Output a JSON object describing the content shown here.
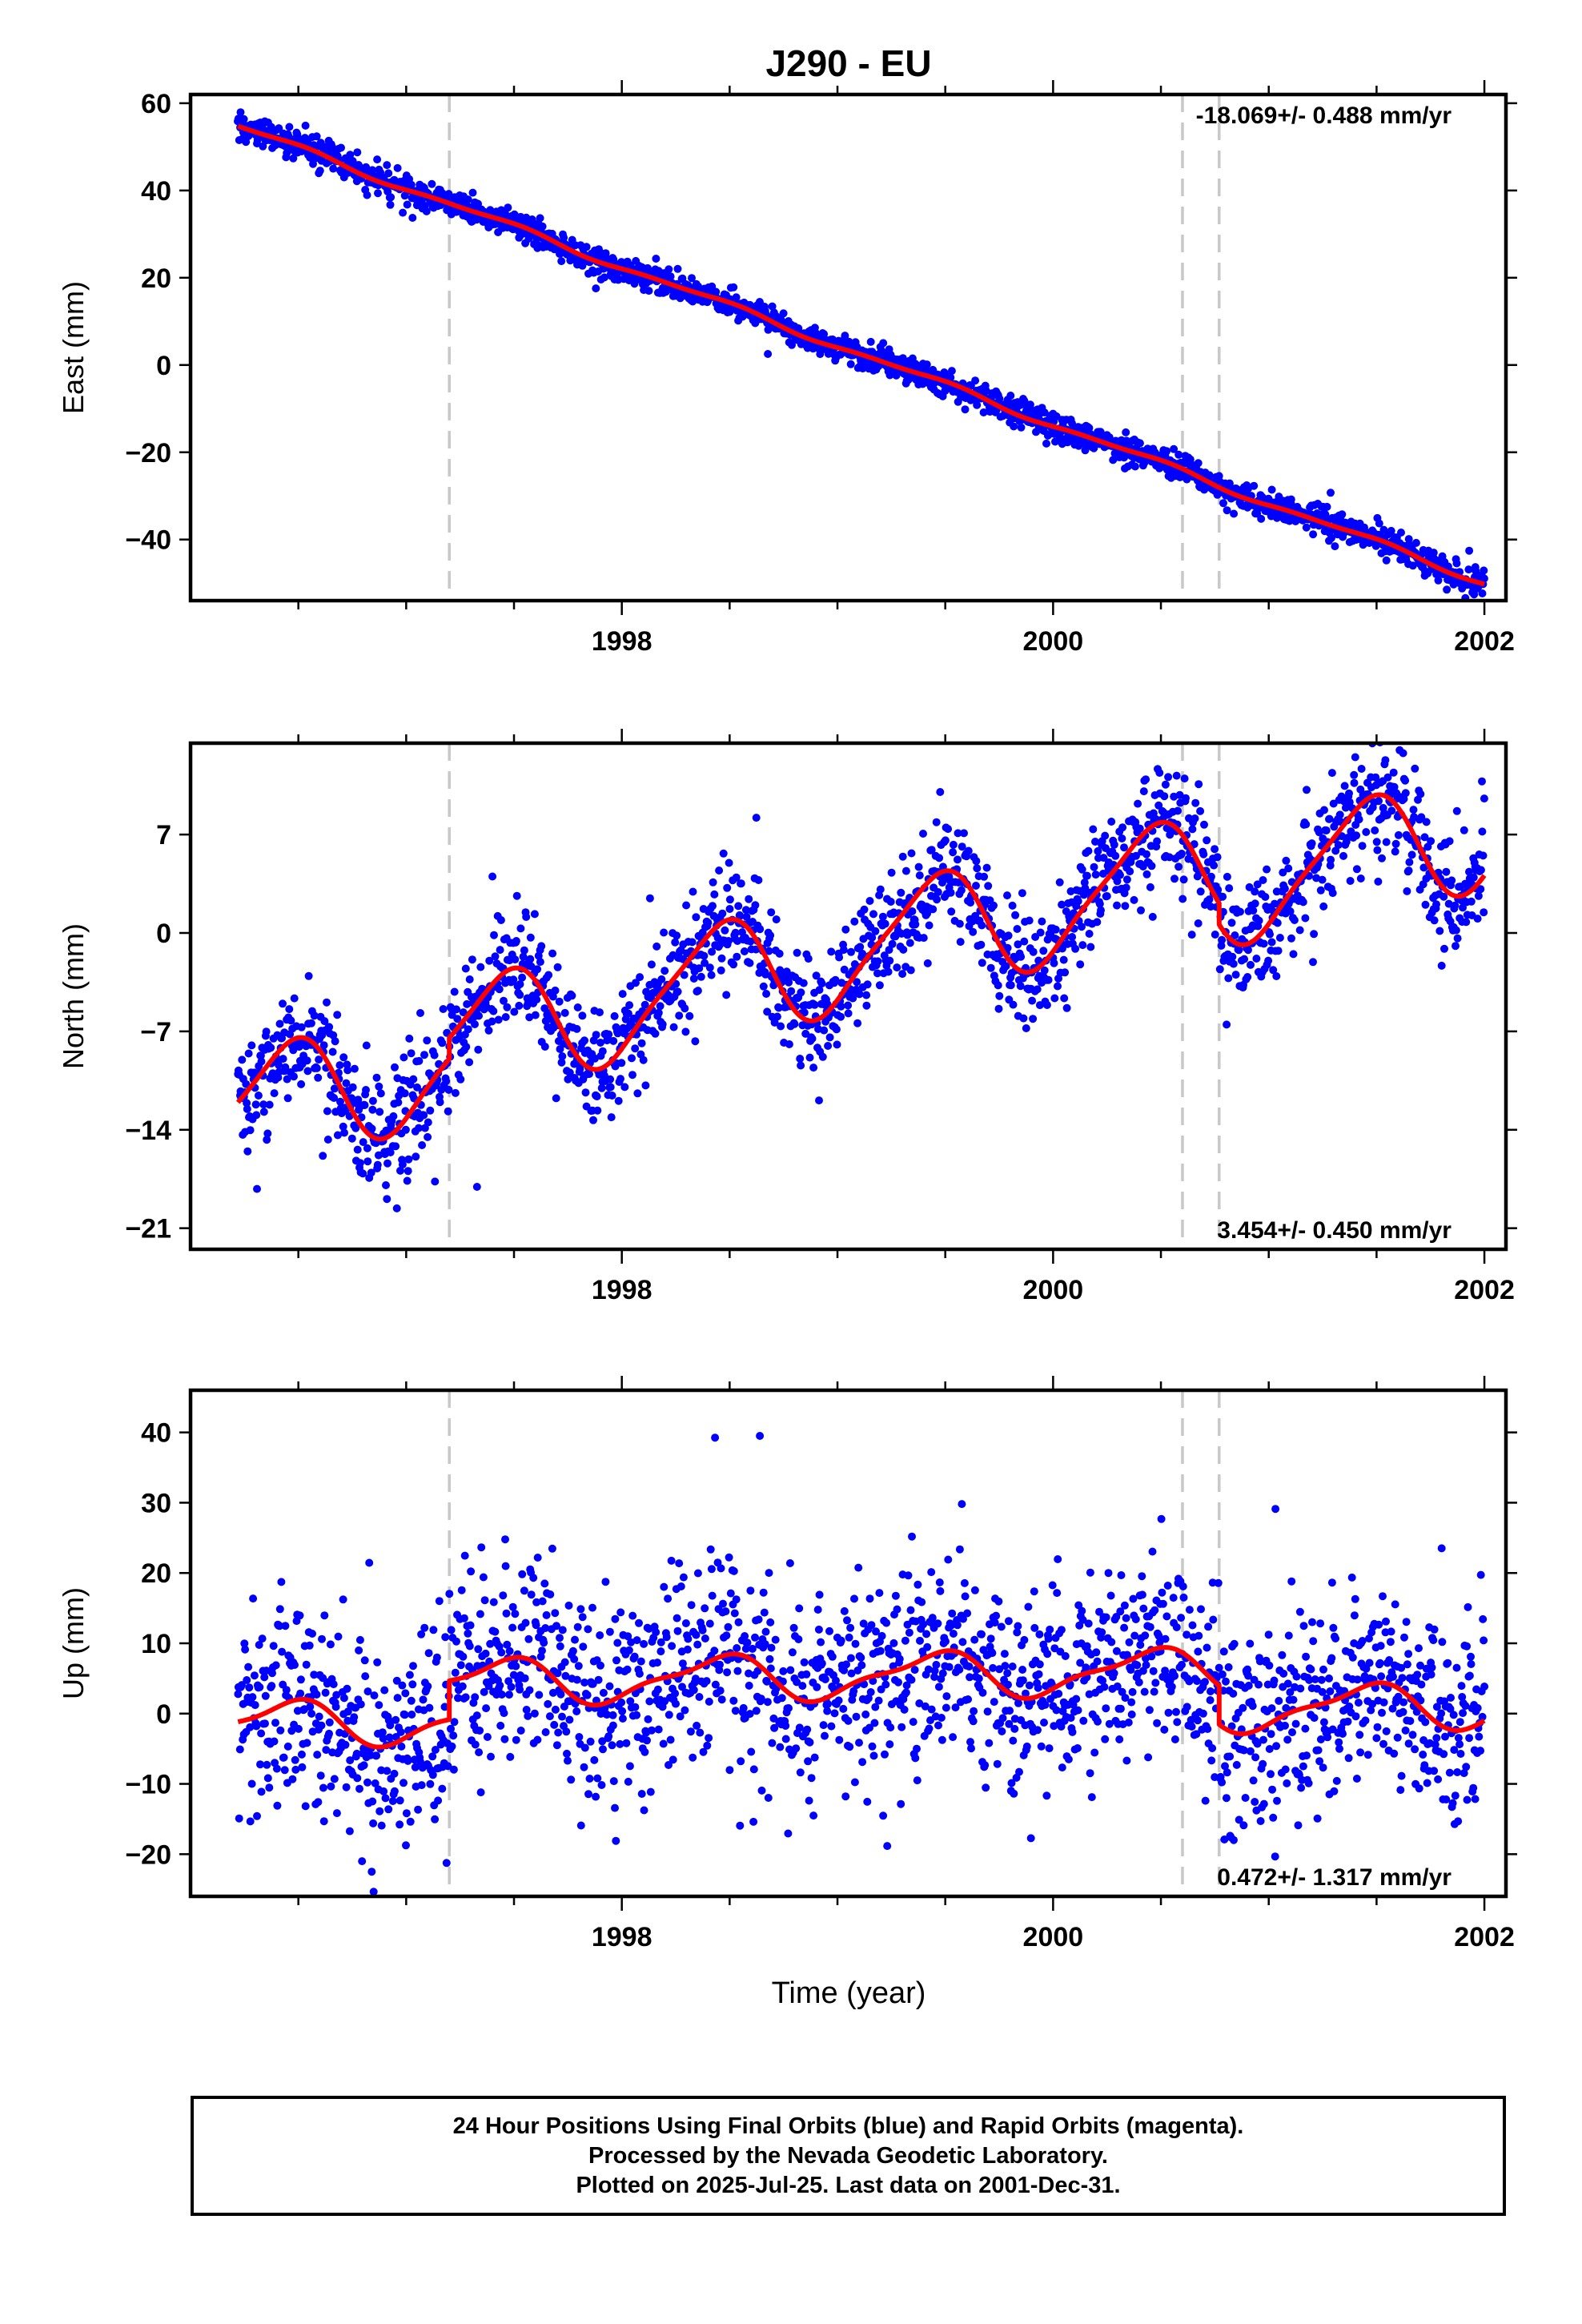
{
  "figure": {
    "title": "J290 - EU",
    "xlabel": "Time (year)"
  },
  "chart_data": [
    {
      "type": "scatter",
      "component": "East",
      "ylabel": "East (mm)",
      "rate_label": "-18.069+/- 0.488 mm/yr",
      "rate_position": "top-right",
      "xlim": [
        1996.0,
        2002.1
      ],
      "ylim": [
        -54,
        62
      ],
      "yticks": [
        -40,
        -20,
        0,
        20,
        40,
        60
      ],
      "xticks": [
        1998,
        2000,
        2002
      ],
      "data_start": 1996.22,
      "data_end": 2002.0,
      "trend_start": 54.7,
      "rate": -18.069,
      "noise": 1.6,
      "seasonal": {
        "annual_amp": 0.7,
        "semiannual_amp": 0.3
      },
      "offsets": [
        {
          "t": 1997.2,
          "d": 0
        },
        {
          "t": 2000.6,
          "d": 0
        },
        {
          "t": 2000.77,
          "d": 0
        }
      ],
      "point_color": "#0000ff",
      "model_color": "#ff0000"
    },
    {
      "type": "scatter",
      "component": "North",
      "ylabel": "North (mm)",
      "rate_label": "3.454+/- 0.450 mm/yr",
      "rate_position": "bottom-right",
      "xlim": [
        1996.0,
        2002.1
      ],
      "ylim": [
        -22.5,
        13.5
      ],
      "yticks": [
        -21,
        -14,
        -7,
        0,
        7
      ],
      "xticks": [
        1998,
        2000,
        2002
      ],
      "data_start": 1996.22,
      "data_end": 2002.0,
      "trend_start": -12.6,
      "rate": 3.454,
      "noise": 2.0,
      "seasonal": {
        "annual_amp": 4.0,
        "semiannual_amp": 0.8
      },
      "offsets": [
        {
          "t": 1997.2,
          "d": 1.5
        },
        {
          "t": 2000.6,
          "d": 0
        },
        {
          "t": 2000.77,
          "d": -1.5
        }
      ],
      "point_color": "#0000ff",
      "model_color": "#ff0000"
    },
    {
      "type": "scatter",
      "component": "Up",
      "ylabel": "Up (mm)",
      "rate_label": "0.472+/- 1.317 mm/yr",
      "rate_position": "bottom-right",
      "xlim": [
        1996.0,
        2002.1
      ],
      "ylim": [
        -26,
        46
      ],
      "yticks": [
        -20,
        -10,
        0,
        10,
        20,
        30,
        40
      ],
      "xticks": [
        1998,
        2000,
        2002
      ],
      "data_start": 1996.22,
      "data_end": 2002.0,
      "trend_start": -1.5,
      "rate": 0.472,
      "noise": 7.0,
      "seasonal": {
        "annual_amp": 3.0,
        "semiannual_amp": 1.0
      },
      "offsets": [
        {
          "t": 1997.2,
          "d": 5.5
        },
        {
          "t": 2000.6,
          "d": 0
        },
        {
          "t": 2000.77,
          "d": -5.5
        }
      ],
      "point_color": "#0000ff",
      "model_color": "#ff0000"
    }
  ],
  "event_lines": [
    1997.2,
    2000.6,
    2000.77
  ],
  "footer": {
    "line1": "24 Hour Positions Using Final Orbits (blue) and Rapid Orbits (magenta).",
    "line2": "Processed by the Nevada Geodetic Laboratory.",
    "line3": "Plotted on 2025-Jul-25. Last data on 2001-Dec-31."
  }
}
